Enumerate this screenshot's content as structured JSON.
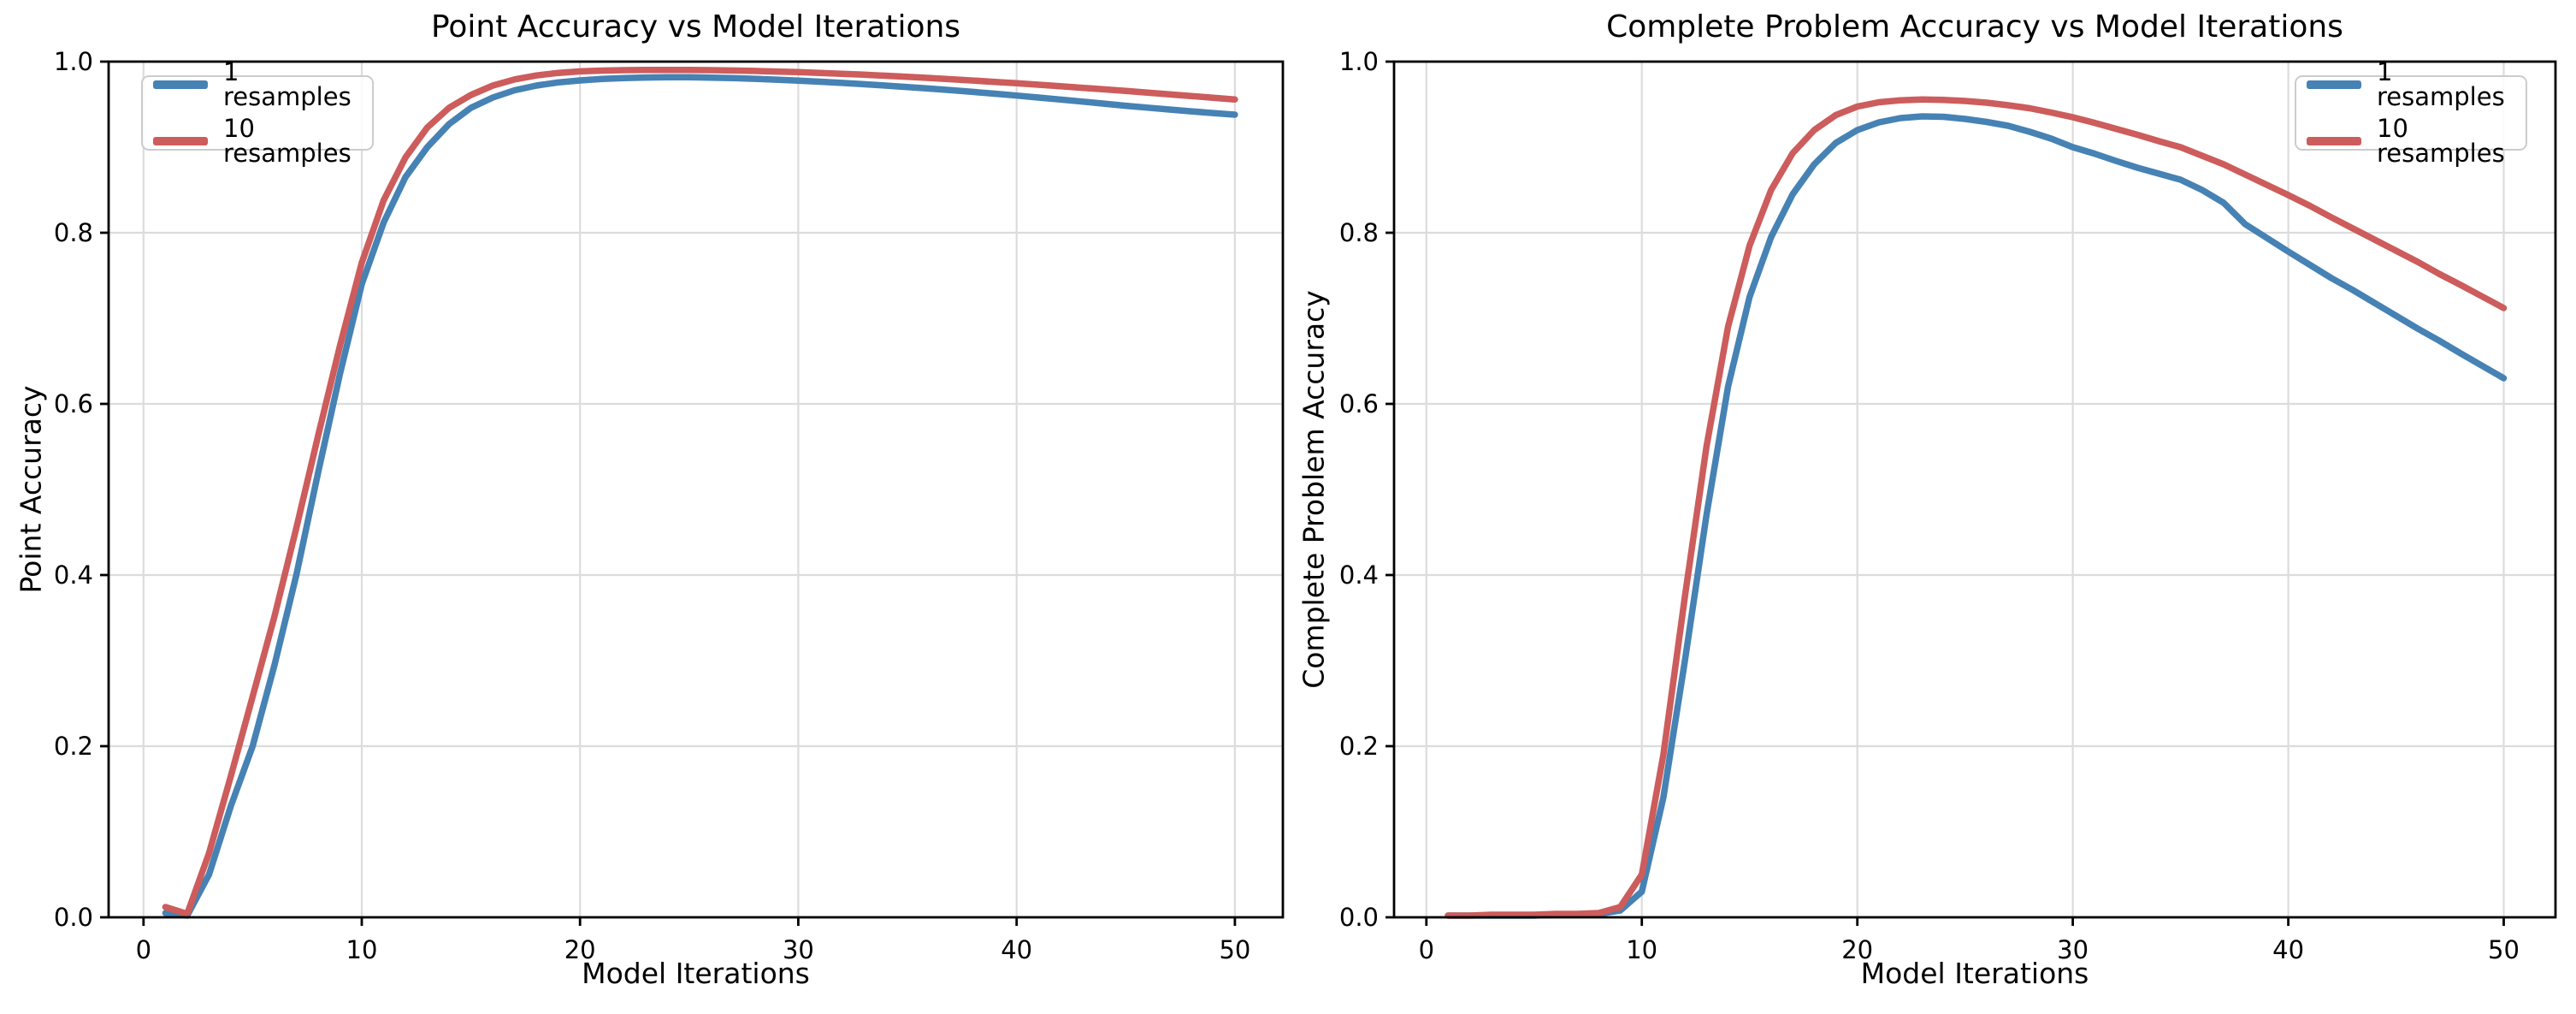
{
  "figure": {
    "background": "#ffffff"
  },
  "chart_data": [
    {
      "type": "line",
      "title": "Point Accuracy vs Model Iterations",
      "xlabel": "Model Iterations",
      "ylabel": "Point Accuracy",
      "grid": true,
      "legend_position": "upper-left",
      "xlim": [
        -1.6,
        52.2
      ],
      "ylim": [
        0,
        1.0
      ],
      "xticks": [
        "0",
        "10",
        "20",
        "30",
        "40",
        "50"
      ],
      "xtick_values": [
        0,
        10,
        20,
        30,
        40,
        50
      ],
      "yticks": [
        "0.0",
        "0.2",
        "0.4",
        "0.6",
        "0.8",
        "1.0"
      ],
      "ytick_values": [
        0,
        0.2,
        0.4,
        0.6,
        0.8,
        1.0
      ],
      "x": [
        1,
        2,
        3,
        4,
        5,
        6,
        7,
        8,
        9,
        10,
        11,
        12,
        13,
        14,
        15,
        16,
        17,
        18,
        19,
        20,
        21,
        22,
        23,
        24,
        25,
        26,
        27,
        28,
        29,
        30,
        31,
        32,
        33,
        34,
        35,
        36,
        37,
        38,
        39,
        40,
        41,
        42,
        43,
        44,
        45,
        46,
        47,
        48,
        49,
        50
      ],
      "series": [
        {
          "name": "1 resamples",
          "color": "#4682B4",
          "values": [
            0.005,
            0.002,
            0.05,
            0.13,
            0.2,
            0.295,
            0.4,
            0.52,
            0.635,
            0.74,
            0.812,
            0.865,
            0.9,
            0.927,
            0.946,
            0.958,
            0.9665,
            0.972,
            0.9757,
            0.978,
            0.9797,
            0.9808,
            0.9814,
            0.9817,
            0.9817,
            0.9813,
            0.9807,
            0.9799,
            0.9789,
            0.9778,
            0.9765,
            0.9751,
            0.9736,
            0.972,
            0.9703,
            0.9685,
            0.9666,
            0.9646,
            0.9625,
            0.9603,
            0.958,
            0.9557,
            0.9533,
            0.9509,
            0.9484,
            0.9462,
            0.944,
            0.9419,
            0.9399,
            0.938
          ]
        },
        {
          "name": "10 resamples",
          "color": "#CD5C5C",
          "values": [
            0.012,
            0.004,
            0.075,
            0.165,
            0.258,
            0.352,
            0.455,
            0.563,
            0.668,
            0.765,
            0.838,
            0.888,
            0.923,
            0.946,
            0.961,
            0.972,
            0.9792,
            0.9838,
            0.9868,
            0.9886,
            0.9895,
            0.99,
            0.9902,
            0.9903,
            0.9902,
            0.99,
            0.9896,
            0.9891,
            0.9884,
            0.9877,
            0.9868,
            0.9858,
            0.9847,
            0.9835,
            0.9822,
            0.9809,
            0.9794,
            0.9779,
            0.9763,
            0.9747,
            0.973,
            0.9712,
            0.9694,
            0.9676,
            0.9657,
            0.9638,
            0.9618,
            0.9598,
            0.9578,
            0.9558
          ]
        }
      ]
    },
    {
      "type": "line",
      "title": "Complete Problem Accuracy vs Model Iterations",
      "xlabel": "Model Iterations",
      "ylabel": "Complete Problem Accuracy",
      "grid": true,
      "legend_position": "upper-right",
      "xlim": [
        -1.5,
        52.4
      ],
      "ylim": [
        0,
        1.0
      ],
      "xticks": [
        "0",
        "10",
        "20",
        "30",
        "40",
        "50"
      ],
      "xtick_values": [
        0,
        10,
        20,
        30,
        40,
        50
      ],
      "yticks": [
        "0.0",
        "0.2",
        "0.4",
        "0.6",
        "0.8",
        "1.0"
      ],
      "ytick_values": [
        0,
        0.2,
        0.4,
        0.6,
        0.8,
        1.0
      ],
      "x": [
        1,
        2,
        3,
        4,
        5,
        6,
        7,
        8,
        9,
        10,
        11,
        12,
        13,
        14,
        15,
        16,
        17,
        18,
        19,
        20,
        21,
        22,
        23,
        24,
        25,
        26,
        27,
        28,
        29,
        30,
        31,
        32,
        33,
        34,
        35,
        36,
        37,
        38,
        39,
        40,
        41,
        42,
        43,
        44,
        45,
        46,
        47,
        48,
        49,
        50
      ],
      "series": [
        {
          "name": "1 resamples",
          "color": "#4682B4",
          "values": [
            0.002,
            0.002,
            0.002,
            0.002,
            0.002,
            0.003,
            0.003,
            0.004,
            0.008,
            0.03,
            0.14,
            0.3,
            0.47,
            0.62,
            0.725,
            0.795,
            0.845,
            0.88,
            0.905,
            0.92,
            0.929,
            0.934,
            0.936,
            0.9355,
            0.933,
            0.9295,
            0.925,
            0.918,
            0.91,
            0.9,
            0.8925,
            0.884,
            0.876,
            0.869,
            0.862,
            0.85,
            0.835,
            0.81,
            0.794,
            0.778,
            0.7625,
            0.747,
            0.733,
            0.718,
            0.703,
            0.688,
            0.674,
            0.659,
            0.6445,
            0.63
          ]
        },
        {
          "name": "10 resamples",
          "color": "#CD5C5C",
          "values": [
            0.002,
            0.002,
            0.003,
            0.003,
            0.003,
            0.004,
            0.004,
            0.005,
            0.012,
            0.05,
            0.19,
            0.375,
            0.55,
            0.69,
            0.785,
            0.85,
            0.893,
            0.92,
            0.9375,
            0.9475,
            0.9525,
            0.9548,
            0.9557,
            0.9553,
            0.954,
            0.952,
            0.949,
            0.9455,
            0.9405,
            0.935,
            0.9285,
            0.9215,
            0.9145,
            0.907,
            0.9,
            0.89,
            0.88,
            0.868,
            0.856,
            0.844,
            0.8315,
            0.818,
            0.805,
            0.792,
            0.779,
            0.766,
            0.752,
            0.739,
            0.7255,
            0.712
          ]
        }
      ]
    }
  ]
}
